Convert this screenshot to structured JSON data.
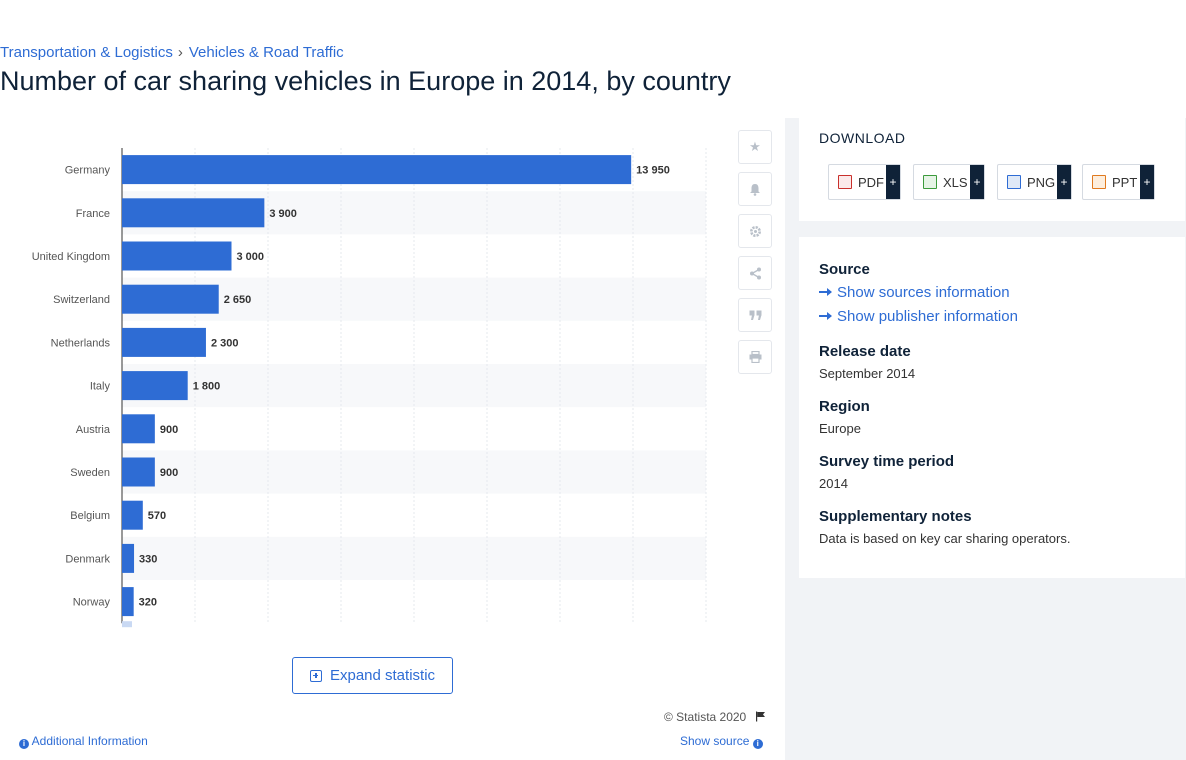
{
  "breadcrumb": {
    "item1": "Transportation & Logistics",
    "sep": "›",
    "item2": "Vehicles & Road Traffic"
  },
  "page_title": "Number of car sharing vehicles in Europe in 2014, by country",
  "chart_data": {
    "type": "bar",
    "orientation": "horizontal",
    "categories": [
      "Germany",
      "France",
      "United Kingdom",
      "Switzerland",
      "Netherlands",
      "Italy",
      "Austria",
      "Sweden",
      "Belgium",
      "Denmark",
      "Norway"
    ],
    "values": [
      13950,
      3900,
      3000,
      2650,
      2300,
      1800,
      900,
      900,
      570,
      330,
      320
    ],
    "value_labels": [
      "13 950",
      "3 900",
      "3 000",
      "2 650",
      "2 300",
      "1 800",
      "900",
      "900",
      "570",
      "330",
      "320"
    ],
    "xlim": [
      0,
      16000
    ],
    "grid": true,
    "bar_color": "#2e6cd4"
  },
  "side_icons": [
    "star-icon",
    "bell-icon",
    "gear-icon",
    "share-icon",
    "quote-icon",
    "print-icon"
  ],
  "expand_label": "Expand statistic",
  "copyright": "© Statista 2020",
  "additional_info": "Additional Information",
  "show_source": "Show source",
  "download": {
    "title": "DOWNLOAD",
    "pdf": "PDF",
    "xls": "XLS",
    "png": "PNG",
    "ppt": "PPT",
    "plus": "+"
  },
  "info": {
    "source_h": "Source",
    "sources_link": "Show sources information",
    "publisher_link": "Show publisher information",
    "release_h": "Release date",
    "release_v": "September 2014",
    "region_h": "Region",
    "region_v": "Europe",
    "survey_h": "Survey time period",
    "survey_v": "2014",
    "notes_h": "Supplementary notes",
    "notes_v": "Data is based on key car sharing operators."
  }
}
